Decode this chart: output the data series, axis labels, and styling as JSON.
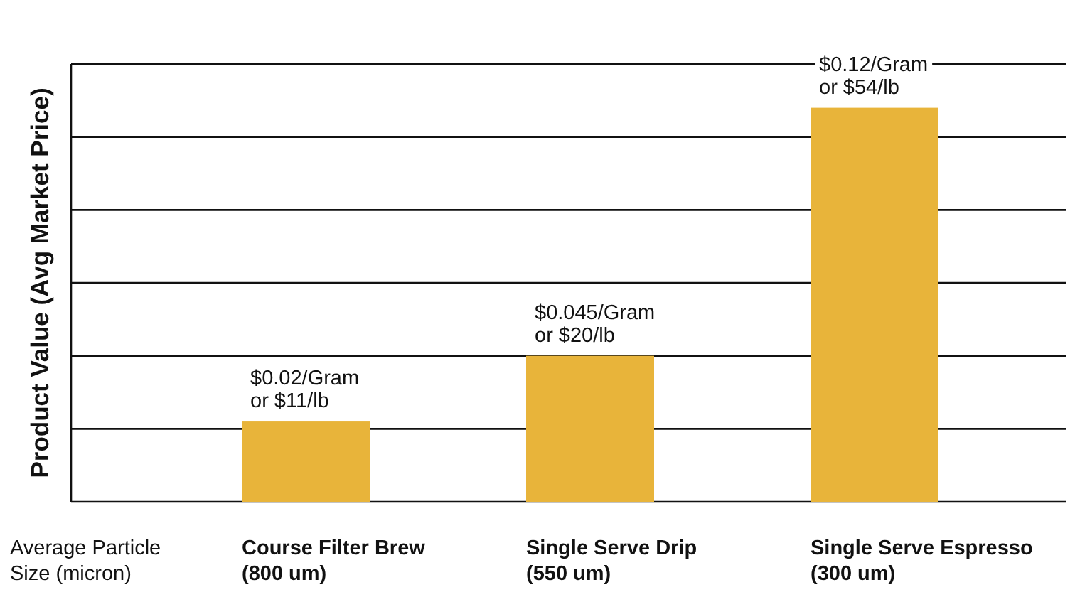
{
  "chart_data": {
    "type": "bar",
    "ylabel": "Product Value (Avg Market Price)",
    "xlabel": "Average Particle\nSize (micron)",
    "categories": [
      "Course Filter Brew\n(800 um)",
      "Single Serve Drip\n(550 um)",
      "Single Serve Espresso\n(300 um)"
    ],
    "values": [
      11,
      20,
      54
    ],
    "value_labels": [
      "$0.02/Gram\nor $11/lb",
      "$0.045/Gram\nor $20/lb",
      "$0.12/Gram\nor $54/lb"
    ],
    "color": "#e8b43a",
    "grid": true,
    "ylim": [
      0,
      60
    ],
    "yticks": [
      {
        "value": 0,
        "label": null
      },
      {
        "value": 10,
        "label": null
      },
      {
        "value": 20,
        "label": null
      },
      {
        "value": 30,
        "label": null
      },
      {
        "value": 40,
        "label": null
      },
      {
        "value": 50,
        "label": null
      },
      {
        "value": 60,
        "label": null
      }
    ]
  }
}
